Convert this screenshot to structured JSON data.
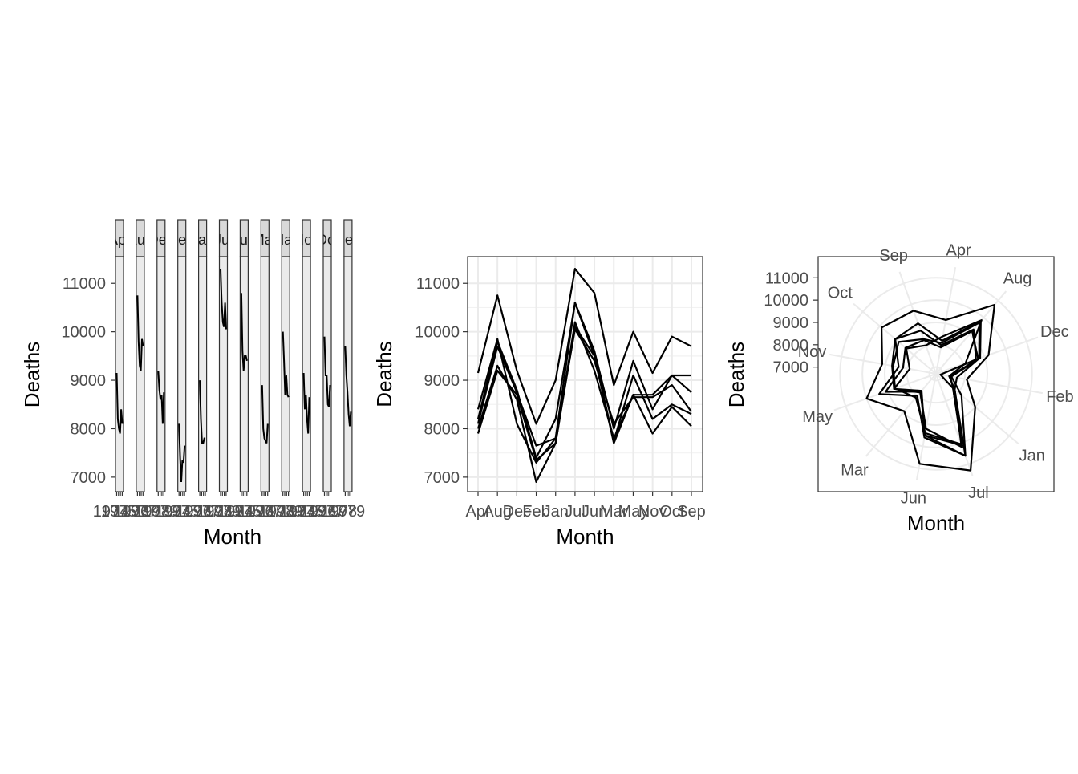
{
  "chart_data": [
    {
      "type": "line",
      "facet_by": "month",
      "xlabel": "Month",
      "ylabel": "Deaths",
      "ylim": [
        6700,
        11550
      ],
      "y_ticks": [
        "7000",
        "8000",
        "9000",
        "10000",
        "11000"
      ],
      "strip_labels": [
        "Apr",
        "Aug",
        "Dec",
        "Feb",
        "Jan",
        "Jul",
        "Jun",
        "Mar",
        "May",
        "Nov",
        "Oct",
        "Sep"
      ],
      "x_tick_labels": [
        "1974",
        "1975",
        "1976",
        "1977",
        "1978",
        "1979"
      ],
      "grid": false,
      "legend": "none"
    },
    {
      "type": "line",
      "xlabel": "Month",
      "ylabel": "Deaths",
      "categories": [
        "Apr",
        "Aug",
        "Dec",
        "Feb",
        "Jan",
        "Jul",
        "Jun",
        "Mar",
        "May",
        "Nov",
        "Oct",
        "Sep"
      ],
      "y_ticks": [
        "7000",
        "8000",
        "9000",
        "10000",
        "11000"
      ],
      "ylim": [
        6700,
        11550
      ],
      "grid": true,
      "legend": "none",
      "series": [
        {
          "values": [
            9150,
            10750,
            9200,
            8100,
            9000,
            11300,
            10800,
            8900,
            10000,
            9150,
            9900,
            9700
          ]
        },
        {
          "values": [
            8200,
            9800,
            8800,
            7400,
            8200,
            10600,
            9600,
            8000,
            9400,
            8400,
            9100,
            9100
          ]
        },
        {
          "values": [
            8000,
            9300,
            8600,
            6900,
            7700,
            10200,
            9200,
            7800,
            8700,
            8700,
            9100,
            8750
          ]
        },
        {
          "values": [
            7900,
            9200,
            8700,
            7350,
            7700,
            10100,
            9500,
            7750,
            9100,
            8200,
            8500,
            8300
          ]
        },
        {
          "values": [
            8400,
            9850,
            8100,
            7300,
            7800,
            10600,
            9500,
            7700,
            8700,
            7900,
            8450,
            8050
          ]
        },
        {
          "values": [
            8100,
            9700,
            8750,
            7650,
            7800,
            10050,
            9400,
            8100,
            8650,
            8650,
            8900,
            8350
          ]
        }
      ]
    },
    {
      "type": "line",
      "coord": "polar",
      "xlabel": "Month",
      "ylabel": "Deaths",
      "categories": [
        "Apr",
        "Aug",
        "Dec",
        "Feb",
        "Jan",
        "Jul",
        "Jun",
        "Mar",
        "May",
        "Nov",
        "Oct",
        "Sep"
      ],
      "y_ticks": [
        "7000",
        "8000",
        "9000",
        "10000",
        "11000"
      ],
      "rlim": [
        6700,
        11550
      ],
      "grid": true,
      "legend": "none"
    }
  ]
}
